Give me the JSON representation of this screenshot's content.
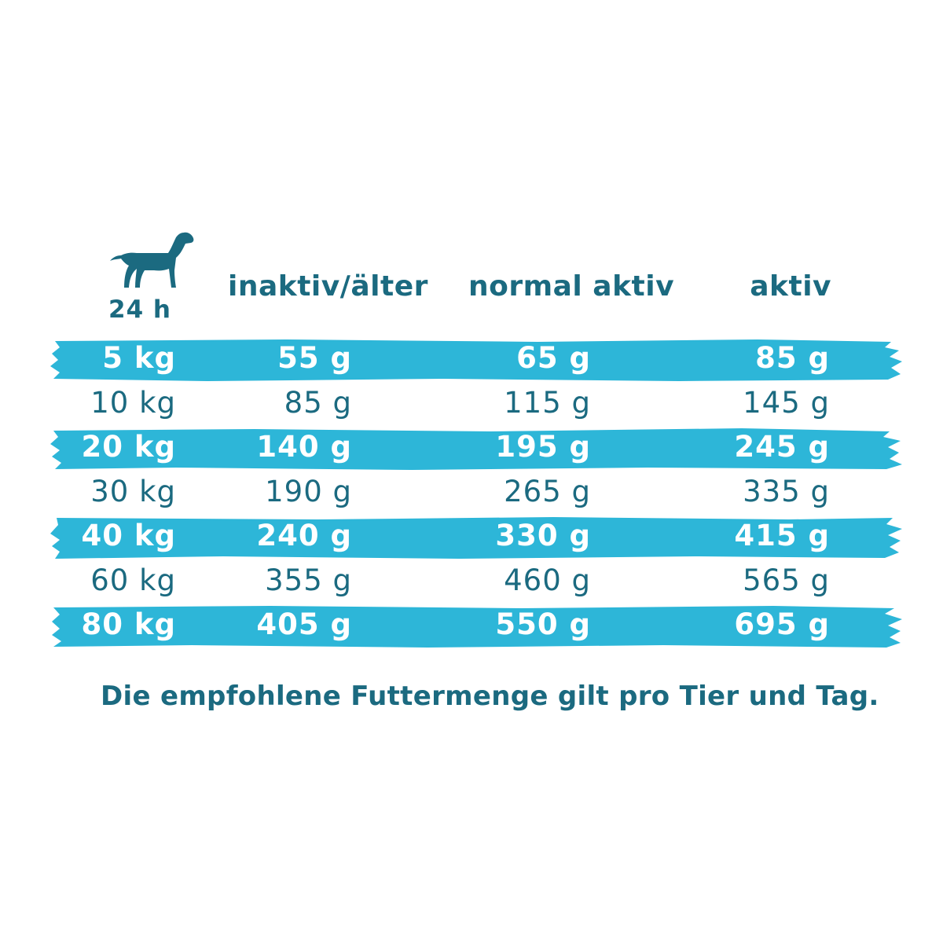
{
  "colors": {
    "teal": "#1b6a80",
    "band": "#2db6d8"
  },
  "header": {
    "icon": "dog-icon",
    "hours_label": "24 h",
    "columns": [
      "inaktiv/älter",
      "normal aktiv",
      "aktiv"
    ]
  },
  "rows": [
    {
      "weight": "5 kg",
      "inactive": "55 g",
      "normal": "65 g",
      "active": "85 g",
      "shaded": true
    },
    {
      "weight": "10 kg",
      "inactive": "85 g",
      "normal": "115 g",
      "active": "145 g",
      "shaded": false
    },
    {
      "weight": "20 kg",
      "inactive": "140 g",
      "normal": "195 g",
      "active": "245 g",
      "shaded": true
    },
    {
      "weight": "30 kg",
      "inactive": "190 g",
      "normal": "265 g",
      "active": "335 g",
      "shaded": false
    },
    {
      "weight": "40 kg",
      "inactive": "240 g",
      "normal": "330 g",
      "active": "415 g",
      "shaded": true
    },
    {
      "weight": "60 kg",
      "inactive": "355 g",
      "normal": "460 g",
      "active": "565 g",
      "shaded": false
    },
    {
      "weight": "80 kg",
      "inactive": "405 g",
      "normal": "550 g",
      "active": "695 g",
      "shaded": true
    }
  ],
  "footnote": "Die empfohlene Futtermenge gilt pro Tier und Tag."
}
